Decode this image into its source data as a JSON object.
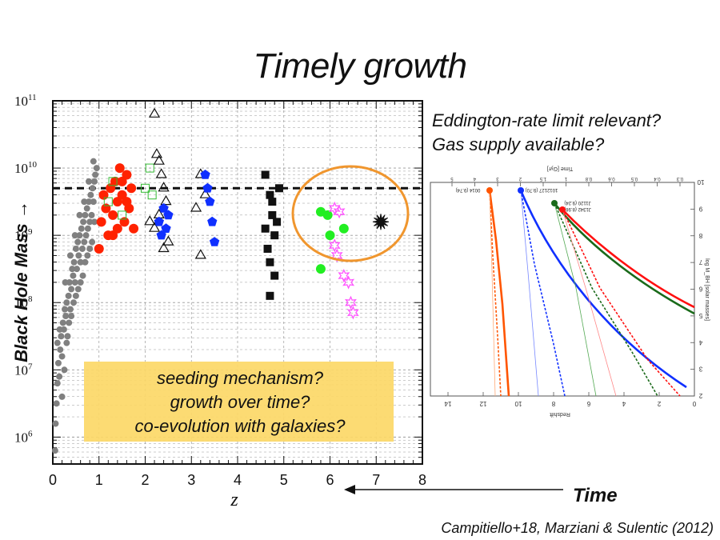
{
  "slide": {
    "title": "Timely growth",
    "questions": [
      "Eddington-rate limit relevant?",
      "Gas supply available?"
    ],
    "box_lines": [
      "seeding mechanism?",
      "growth over time?",
      "co-evolution with galaxies?"
    ],
    "time_label": "Time",
    "citation": "Campitiello+18, Marziani & Sulentic (2012)",
    "colors": {
      "highlight_box": "#fcd867",
      "circle": "#f0962e",
      "grey": "#808080",
      "red": "#ff2200",
      "blue": "#1030ff",
      "green": "#22ee22",
      "magenta": "#ff55ff"
    }
  },
  "chart_data": [
    {
      "type": "scatter",
      "xlabel": "z",
      "ylabel": "Black Hole Mass →",
      "xlim": [
        0,
        8
      ],
      "ylim_log10": [
        5.6,
        11
      ],
      "x_ticks": [
        "0",
        "1",
        "2",
        "3",
        "4",
        "5",
        "6",
        "7",
        "8"
      ],
      "y_ticks": [
        {
          "value": 6,
          "label": "10",
          "exp": "6"
        },
        {
          "value": 7,
          "label": "10",
          "exp": "7"
        },
        {
          "value": 8,
          "label": "10",
          "exp": "8"
        },
        {
          "value": 9,
          "label": "10",
          "exp": "9"
        },
        {
          "value": 10,
          "label": "10",
          "exp": "10"
        },
        {
          "value": 11,
          "label": "10",
          "exp": "11"
        }
      ],
      "reference_line_log10": 9.7,
      "series": [
        {
          "marker": "grey-dot",
          "points": [
            [
              0.05,
              5.8
            ],
            [
              0.06,
              6.2
            ],
            [
              0.08,
              6.5
            ],
            [
              0.1,
              6.8
            ],
            [
              0.12,
              7.1
            ],
            [
              0.14,
              6.9
            ],
            [
              0.16,
              7.3
            ],
            [
              0.18,
              7.5
            ],
            [
              0.2,
              7.2
            ],
            [
              0.22,
              7.7
            ],
            [
              0.24,
              7.6
            ],
            [
              0.26,
              7.9
            ],
            [
              0.28,
              7.8
            ],
            [
              0.3,
              8.0
            ],
            [
              0.32,
              7.5
            ],
            [
              0.34,
              8.1
            ],
            [
              0.36,
              8.3
            ],
            [
              0.38,
              7.9
            ],
            [
              0.4,
              8.2
            ],
            [
              0.42,
              8.5
            ],
            [
              0.44,
              8.4
            ],
            [
              0.46,
              8.6
            ],
            [
              0.48,
              8.3
            ],
            [
              0.5,
              8.8
            ],
            [
              0.52,
              8.5
            ],
            [
              0.54,
              8.9
            ],
            [
              0.56,
              8.7
            ],
            [
              0.58,
              9.0
            ],
            [
              0.6,
              8.6
            ],
            [
              0.62,
              9.1
            ],
            [
              0.64,
              8.8
            ],
            [
              0.66,
              9.2
            ],
            [
              0.68,
              8.9
            ],
            [
              0.7,
              9.3
            ],
            [
              0.72,
              9.0
            ],
            [
              0.74,
              9.4
            ],
            [
              0.76,
              9.1
            ],
            [
              0.78,
              9.5
            ],
            [
              0.8,
              9.2
            ],
            [
              0.82,
              9.6
            ],
            [
              0.84,
              9.3
            ],
            [
              0.86,
              9.7
            ],
            [
              0.88,
              9.5
            ],
            [
              0.9,
              9.8
            ],
            [
              0.92,
              9.9
            ],
            [
              0.95,
              10.0
            ],
            [
              0.25,
              7.0
            ],
            [
              0.35,
              7.7
            ],
            [
              0.45,
              8.0
            ],
            [
              0.55,
              8.2
            ],
            [
              0.65,
              8.4
            ],
            [
              0.75,
              8.7
            ],
            [
              0.85,
              8.9
            ],
            [
              0.3,
              7.4
            ],
            [
              0.4,
              7.8
            ],
            [
              0.5,
              8.1
            ],
            [
              0.6,
              8.3
            ],
            [
              0.7,
              8.6
            ],
            [
              0.8,
              8.8
            ],
            [
              0.9,
              9.2
            ],
            [
              0.15,
              7.6
            ],
            [
              0.2,
              6.6
            ],
            [
              0.1,
              7.4
            ],
            [
              0.27,
              8.3
            ],
            [
              0.38,
              8.7
            ],
            [
              0.48,
              9.0
            ],
            [
              0.58,
              9.3
            ],
            [
              0.68,
              9.5
            ],
            [
              0.78,
              9.8
            ],
            [
              0.88,
              10.1
            ]
          ]
        },
        {
          "marker": "red-dot",
          "points": [
            [
              1.0,
              8.8
            ],
            [
              1.05,
              9.2
            ],
            [
              1.1,
              9.6
            ],
            [
              1.15,
              9.4
            ],
            [
              1.2,
              9.0
            ],
            [
              1.25,
              9.7
            ],
            [
              1.3,
              9.3
            ],
            [
              1.35,
              9.8
            ],
            [
              1.4,
              9.5
            ],
            [
              1.45,
              10.0
            ],
            [
              1.5,
              9.6
            ],
            [
              1.55,
              9.2
            ],
            [
              1.6,
              9.9
            ],
            [
              1.65,
              9.4
            ],
            [
              1.7,
              9.7
            ],
            [
              1.75,
              9.1
            ],
            [
              1.3,
              9.0
            ],
            [
              1.5,
              9.8
            ],
            [
              1.6,
              9.5
            ],
            [
              1.4,
              9.1
            ]
          ]
        },
        {
          "marker": "green-open-square",
          "points": [
            [
              1.2,
              9.5
            ],
            [
              1.3,
              9.8
            ],
            [
              1.5,
              9.3
            ],
            [
              2.0,
              9.7
            ],
            [
              2.1,
              10.0
            ],
            [
              2.15,
              9.6
            ]
          ]
        },
        {
          "marker": "open-triangle",
          "points": [
            [
              2.2,
              10.8
            ],
            [
              2.25,
              10.2
            ],
            [
              2.3,
              10.1
            ],
            [
              2.35,
              9.9
            ],
            [
              2.4,
              9.7
            ],
            [
              2.45,
              9.5
            ],
            [
              2.3,
              9.3
            ],
            [
              2.2,
              9.1
            ],
            [
              2.4,
              8.8
            ],
            [
              2.5,
              8.9
            ],
            [
              3.2,
              9.9
            ],
            [
              3.3,
              9.6
            ],
            [
              3.1,
              9.4
            ],
            [
              3.2,
              8.7
            ],
            [
              2.1,
              9.2
            ]
          ]
        },
        {
          "marker": "blue-pentagon",
          "points": [
            [
              2.3,
              9.2
            ],
            [
              2.35,
              9.0
            ],
            [
              2.4,
              9.4
            ],
            [
              2.45,
              9.1
            ],
            [
              2.5,
              9.3
            ],
            [
              3.3,
              9.9
            ],
            [
              3.35,
              9.7
            ],
            [
              3.4,
              9.5
            ],
            [
              3.45,
              9.2
            ],
            [
              3.5,
              8.9
            ]
          ]
        },
        {
          "marker": "black-square",
          "points": [
            [
              4.6,
              9.9
            ],
            [
              4.7,
              9.6
            ],
            [
              4.75,
              9.3
            ],
            [
              4.8,
              9.0
            ],
            [
              4.65,
              8.8
            ],
            [
              4.7,
              8.6
            ],
            [
              4.8,
              8.4
            ],
            [
              4.85,
              9.2
            ],
            [
              4.75,
              9.5
            ],
            [
              4.7,
              8.1
            ],
            [
              4.6,
              9.1
            ],
            [
              4.9,
              9.7
            ]
          ]
        },
        {
          "marker": "green-dot",
          "points": [
            [
              5.8,
              9.35
            ],
            [
              5.95,
              9.3
            ],
            [
              6.3,
              9.1
            ],
            [
              6.0,
              9.0
            ],
            [
              5.8,
              8.5
            ]
          ]
        },
        {
          "marker": "magenta-star",
          "points": [
            [
              6.1,
              9.4
            ],
            [
              6.2,
              9.35
            ],
            [
              6.1,
              8.85
            ],
            [
              6.15,
              8.7
            ],
            [
              6.3,
              8.4
            ],
            [
              6.4,
              8.3
            ],
            [
              6.45,
              8.0
            ],
            [
              6.5,
              7.85
            ]
          ]
        },
        {
          "marker": "black-star",
          "points": [
            [
              7.1,
              9.2
            ]
          ]
        }
      ]
    },
    {
      "type": "line",
      "top_axis_label": "Time [Gyr]",
      "top_ticks": [
        "0.3",
        "0.4",
        "0.5",
        "0.6",
        "0.8",
        "1",
        "1.5",
        "2",
        "3",
        "4",
        "5"
      ],
      "xlabel": "Redshift",
      "x_ticks": [
        "0",
        "2",
        "4",
        "6",
        "8",
        "10",
        "12",
        "14"
      ],
      "ylabel": "log M_BH [solar masses]",
      "y_ticks": [
        "2",
        "3",
        "4",
        "5",
        "6",
        "7",
        "8",
        "9",
        "10"
      ],
      "legend": [
        "0014 (9.74)",
        "1012127 (9.70)",
        "J1120 (9.24)",
        "J1342 (8.98)"
      ]
    }
  ]
}
